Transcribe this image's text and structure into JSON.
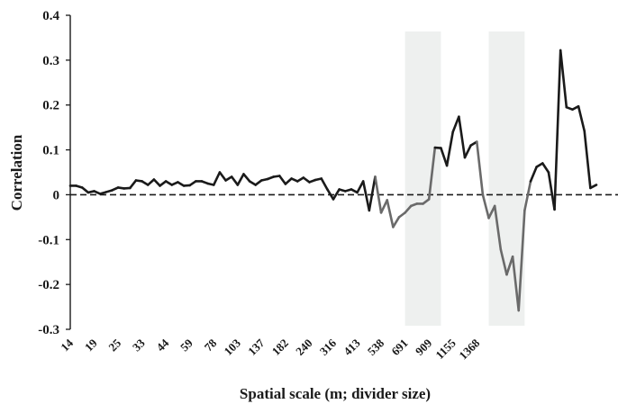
{
  "chart_data": {
    "type": "line",
    "title": "",
    "xlabel": "Spatial scale (m; divider size)",
    "ylabel": "Correlation",
    "ylim": [
      -0.3,
      0.4
    ],
    "yticks": [
      {
        "value": 0.4,
        "label": "0.4"
      },
      {
        "value": 0.3,
        "label": "0.3"
      },
      {
        "value": 0.2,
        "label": "0.2"
      },
      {
        "value": 0.1,
        "label": "0.1"
      },
      {
        "value": 0,
        "label": "0"
      },
      {
        "value": -0.1,
        "label": "-0.1"
      },
      {
        "value": -0.2,
        "label": "-0.2"
      },
      {
        "value": -0.3,
        "label": "-0.3"
      }
    ],
    "x_tick_labels": [
      "14",
      "19",
      "25",
      "33",
      "44",
      "59",
      "78",
      "103",
      "137",
      "182",
      "240",
      "316",
      "413",
      "538",
      "691",
      "909",
      "1155",
      "1368"
    ],
    "x_tick_every": 4,
    "reference_line": {
      "y": 0,
      "style": "dashed"
    },
    "shaded_ranges": [
      [
        56,
        62
      ],
      [
        70,
        76
      ]
    ],
    "colors": {
      "line": "#1a1a1a",
      "highlight": "#6a6a6a",
      "shade": "#eef0ef",
      "axis": "#1a1a1a"
    },
    "series": [
      {
        "values": [
          0.02,
          0.02,
          0.016,
          0.005,
          0.008,
          0.002,
          0.006,
          0.01,
          0.016,
          0.014,
          0.015,
          0.032,
          0.03,
          0.022,
          0.034,
          0.02,
          0.03,
          0.022,
          0.028,
          0.02,
          0.021,
          0.03,
          0.03,
          0.025,
          0.022,
          0.05,
          0.032,
          0.04,
          0.022,
          0.046,
          0.03,
          0.022,
          0.032,
          0.035,
          0.04,
          0.042,
          0.024,
          0.036,
          0.03,
          0.038,
          0.028,
          0.033,
          0.036,
          0.012,
          -0.01,
          0.012,
          0.008,
          0.012,
          0.005,
          0.03,
          -0.035,
          0.04,
          -0.04,
          -0.012,
          -0.072,
          -0.05,
          -0.04,
          -0.025,
          -0.02,
          -0.02,
          -0.01,
          0.105,
          0.104,
          0.065,
          0.14,
          0.174,
          0.083,
          0.11,
          0.118,
          0.0,
          -0.052,
          -0.025,
          -0.122,
          -0.178,
          -0.138,
          -0.258,
          -0.035,
          0.03,
          0.062,
          0.07,
          0.05,
          -0.033,
          0.322,
          0.195,
          0.19,
          0.197,
          0.142,
          0.015,
          0.022
        ],
        "highlight_ranges": [
          [
            51,
            61
          ],
          [
            68,
            77
          ]
        ]
      }
    ]
  }
}
